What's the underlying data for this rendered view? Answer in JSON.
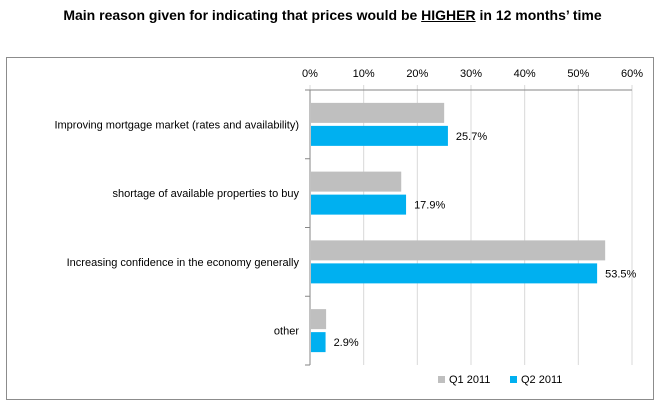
{
  "title": {
    "prefix": "Main reason given for indicating that prices would be ",
    "emphasis": "HIGHER",
    "suffix": " in 12 months’ time"
  },
  "chart_data": {
    "type": "bar",
    "orientation": "horizontal",
    "categories": [
      "Improving mortgage market (rates and availability)",
      "shortage of available properties to buy",
      "Increasing confidence in the economy generally",
      "other"
    ],
    "series": [
      {
        "name": "Q1 2011",
        "color": "#bfbfbf",
        "values": [
          25.0,
          17.0,
          55.0,
          3.0
        ],
        "data_labels": false
      },
      {
        "name": "Q2 2011",
        "color": "#00b0f0",
        "values": [
          25.7,
          17.9,
          53.5,
          2.9
        ],
        "data_labels": true
      }
    ],
    "xlim": [
      0,
      60
    ],
    "x_ticks": [
      0,
      10,
      20,
      30,
      40,
      50,
      60
    ],
    "x_tick_format": "percent",
    "axis_position": "top",
    "grid": true,
    "legend_position": "bottom-right"
  }
}
